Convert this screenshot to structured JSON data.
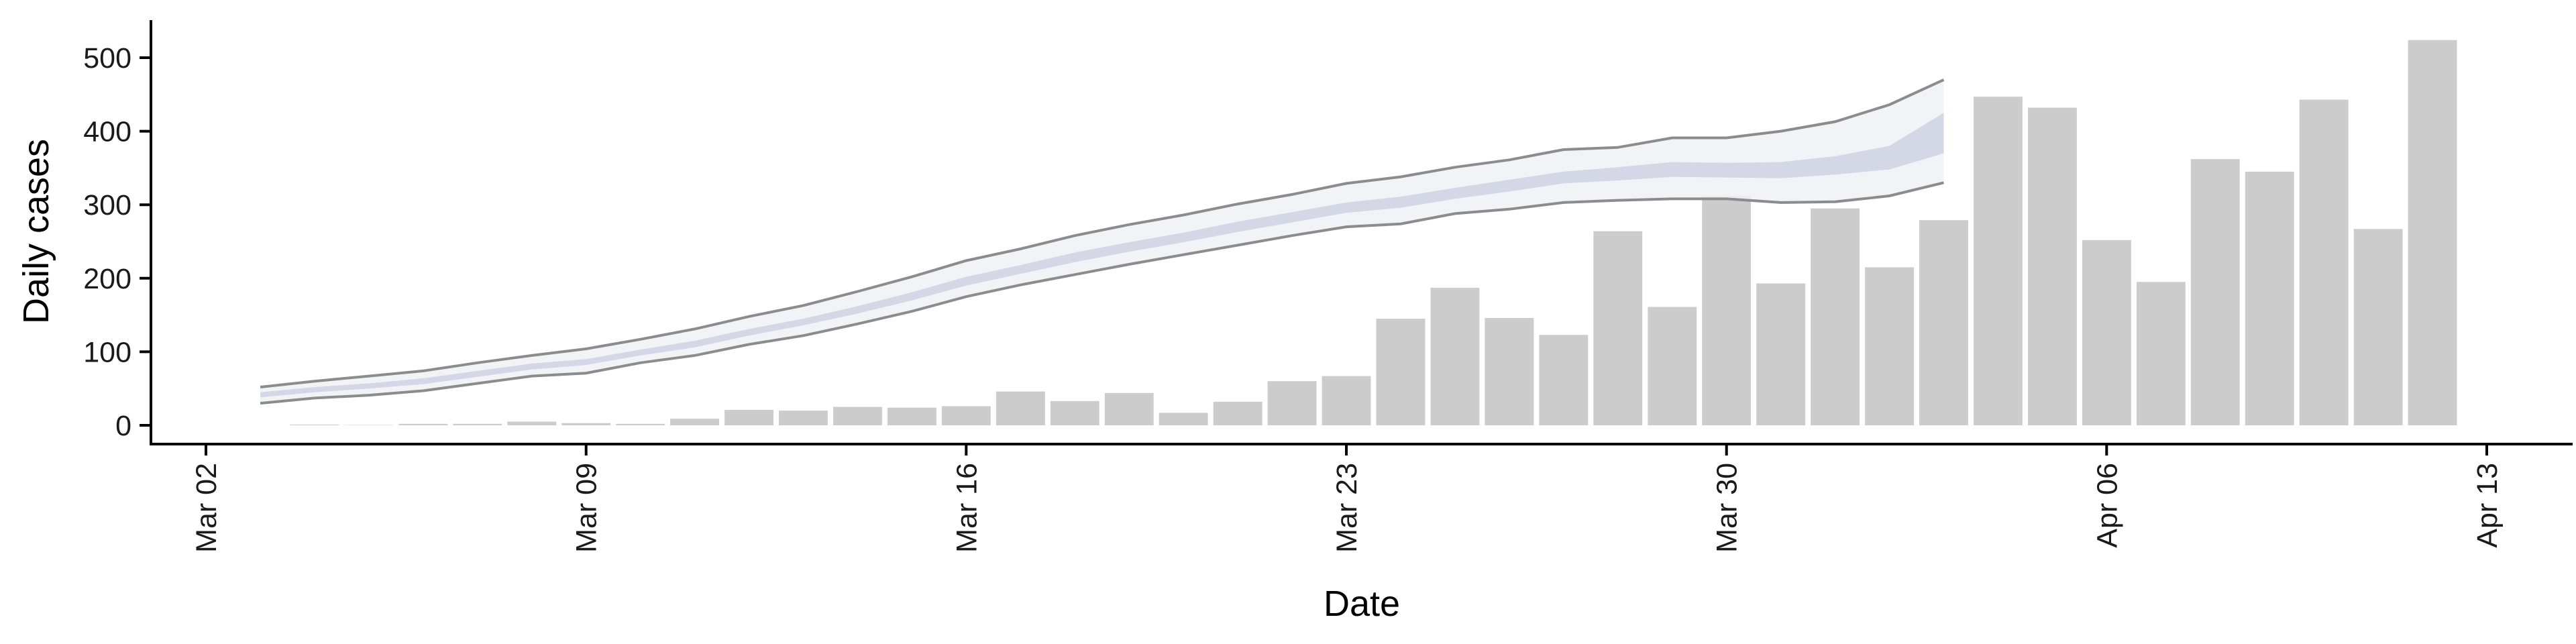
{
  "chart_data": {
    "type": "bar",
    "xlabel": "Date",
    "ylabel": "Daily cases",
    "x_range": [
      "2020-03-02",
      "2020-04-13"
    ],
    "ylim": [
      -25,
      560
    ],
    "x_ticks": [
      {
        "date": "2020-03-02",
        "label": "Mar 02"
      },
      {
        "date": "2020-03-09",
        "label": "Mar 09"
      },
      {
        "date": "2020-03-16",
        "label": "Mar 16"
      },
      {
        "date": "2020-03-23",
        "label": "Mar 23"
      },
      {
        "date": "2020-03-30",
        "label": "Mar 30"
      },
      {
        "date": "2020-04-06",
        "label": "Apr 06"
      },
      {
        "date": "2020-04-13",
        "label": "Apr 13"
      }
    ],
    "y_ticks": [
      0,
      100,
      200,
      300,
      400,
      500
    ],
    "grid": false,
    "legend": "none",
    "bars": {
      "color": "#cccccc",
      "points": [
        {
          "date": "2020-03-04",
          "value": 1
        },
        {
          "date": "2020-03-05",
          "value": 0
        },
        {
          "date": "2020-03-06",
          "value": 2
        },
        {
          "date": "2020-03-07",
          "value": 2
        },
        {
          "date": "2020-03-08",
          "value": 5
        },
        {
          "date": "2020-03-09",
          "value": 3
        },
        {
          "date": "2020-03-10",
          "value": 2
        },
        {
          "date": "2020-03-11",
          "value": 9
        },
        {
          "date": "2020-03-12",
          "value": 21
        },
        {
          "date": "2020-03-13",
          "value": 20
        },
        {
          "date": "2020-03-14",
          "value": 25
        },
        {
          "date": "2020-03-15",
          "value": 24
        },
        {
          "date": "2020-03-16",
          "value": 26
        },
        {
          "date": "2020-03-17",
          "value": 46
        },
        {
          "date": "2020-03-18",
          "value": 33
        },
        {
          "date": "2020-03-19",
          "value": 44
        },
        {
          "date": "2020-03-20",
          "value": 17
        },
        {
          "date": "2020-03-21",
          "value": 32
        },
        {
          "date": "2020-03-22",
          "value": 60
        },
        {
          "date": "2020-03-23",
          "value": 67
        },
        {
          "date": "2020-03-24",
          "value": 145
        },
        {
          "date": "2020-03-25",
          "value": 187
        },
        {
          "date": "2020-03-26",
          "value": 146
        },
        {
          "date": "2020-03-27",
          "value": 123
        },
        {
          "date": "2020-03-28",
          "value": 264
        },
        {
          "date": "2020-03-29",
          "value": 161
        },
        {
          "date": "2020-03-30",
          "value": 312
        },
        {
          "date": "2020-03-31",
          "value": 193
        },
        {
          "date": "2020-04-01",
          "value": 295
        },
        {
          "date": "2020-04-02",
          "value": 215
        },
        {
          "date": "2020-04-03",
          "value": 279
        },
        {
          "date": "2020-04-04",
          "value": 447
        },
        {
          "date": "2020-04-05",
          "value": 432
        },
        {
          "date": "2020-04-06",
          "value": 252
        },
        {
          "date": "2020-04-07",
          "value": 195
        },
        {
          "date": "2020-04-08",
          "value": 362
        },
        {
          "date": "2020-04-09",
          "value": 345
        },
        {
          "date": "2020-04-10",
          "value": 443
        },
        {
          "date": "2020-04-11",
          "value": 267
        },
        {
          "date": "2020-04-12",
          "value": 524
        }
      ]
    },
    "estimate": {
      "outer_fill": "#f0f1f6",
      "inner_fill": "#cfd3e3",
      "edge_color": "#8c8c8c",
      "points": [
        {
          "date": "2020-03-03",
          "lo": 30,
          "in_lo": 38,
          "in_hi": 45,
          "hi": 52
        },
        {
          "date": "2020-03-04",
          "lo": 37,
          "in_lo": 45,
          "in_hi": 52,
          "hi": 60
        },
        {
          "date": "2020-03-05",
          "lo": 41,
          "in_lo": 50,
          "in_hi": 57,
          "hi": 67
        },
        {
          "date": "2020-03-06",
          "lo": 47,
          "in_lo": 56,
          "in_hi": 64,
          "hi": 74
        },
        {
          "date": "2020-03-07",
          "lo": 57,
          "in_lo": 66,
          "in_hi": 74,
          "hi": 85
        },
        {
          "date": "2020-03-08",
          "lo": 67,
          "in_lo": 76,
          "in_hi": 84,
          "hi": 95
        },
        {
          "date": "2020-03-09",
          "lo": 71,
          "in_lo": 82,
          "in_hi": 90,
          "hi": 104
        },
        {
          "date": "2020-03-10",
          "lo": 85,
          "in_lo": 95,
          "in_hi": 103,
          "hi": 117
        },
        {
          "date": "2020-03-11",
          "lo": 95,
          "in_lo": 106,
          "in_hi": 115,
          "hi": 131
        },
        {
          "date": "2020-03-12",
          "lo": 110,
          "in_lo": 122,
          "in_hi": 131,
          "hi": 148
        },
        {
          "date": "2020-03-13",
          "lo": 122,
          "in_lo": 136,
          "in_hi": 145,
          "hi": 163
        },
        {
          "date": "2020-03-14",
          "lo": 138,
          "in_lo": 152,
          "in_hi": 162,
          "hi": 182
        },
        {
          "date": "2020-03-15",
          "lo": 155,
          "in_lo": 170,
          "in_hi": 181,
          "hi": 202
        },
        {
          "date": "2020-03-16",
          "lo": 175,
          "in_lo": 190,
          "in_hi": 202,
          "hi": 224
        },
        {
          "date": "2020-03-17",
          "lo": 191,
          "in_lo": 206,
          "in_hi": 218,
          "hi": 240
        },
        {
          "date": "2020-03-18",
          "lo": 205,
          "in_lo": 222,
          "in_hi": 235,
          "hi": 258
        },
        {
          "date": "2020-03-19",
          "lo": 219,
          "in_lo": 236,
          "in_hi": 249,
          "hi": 273
        },
        {
          "date": "2020-03-20",
          "lo": 232,
          "in_lo": 249,
          "in_hi": 262,
          "hi": 286
        },
        {
          "date": "2020-03-21",
          "lo": 245,
          "in_lo": 263,
          "in_hi": 277,
          "hi": 301
        },
        {
          "date": "2020-03-22",
          "lo": 258,
          "in_lo": 276,
          "in_hi": 290,
          "hi": 314
        },
        {
          "date": "2020-03-23",
          "lo": 270,
          "in_lo": 289,
          "in_hi": 303,
          "hi": 329
        },
        {
          "date": "2020-03-24",
          "lo": 274,
          "in_lo": 296,
          "in_hi": 311,
          "hi": 338
        },
        {
          "date": "2020-03-25",
          "lo": 288,
          "in_lo": 308,
          "in_hi": 323,
          "hi": 351
        },
        {
          "date": "2020-03-26",
          "lo": 294,
          "in_lo": 318,
          "in_hi": 334,
          "hi": 361
        },
        {
          "date": "2020-03-27",
          "lo": 303,
          "in_lo": 329,
          "in_hi": 345,
          "hi": 375
        },
        {
          "date": "2020-03-28",
          "lo": 306,
          "in_lo": 333,
          "in_hi": 351,
          "hi": 378
        },
        {
          "date": "2020-03-29",
          "lo": 308,
          "in_lo": 338,
          "in_hi": 358,
          "hi": 391
        },
        {
          "date": "2020-03-30",
          "lo": 308,
          "in_lo": 337,
          "in_hi": 357,
          "hi": 391
        },
        {
          "date": "2020-03-31",
          "lo": 303,
          "in_lo": 336,
          "in_hi": 358,
          "hi": 400
        },
        {
          "date": "2020-04-01",
          "lo": 304,
          "in_lo": 341,
          "in_hi": 366,
          "hi": 413
        },
        {
          "date": "2020-04-02",
          "lo": 312,
          "in_lo": 348,
          "in_hi": 380,
          "hi": 436
        },
        {
          "date": "2020-04-03",
          "lo": 330,
          "in_lo": 370,
          "in_hi": 425,
          "hi": 470
        }
      ]
    }
  }
}
